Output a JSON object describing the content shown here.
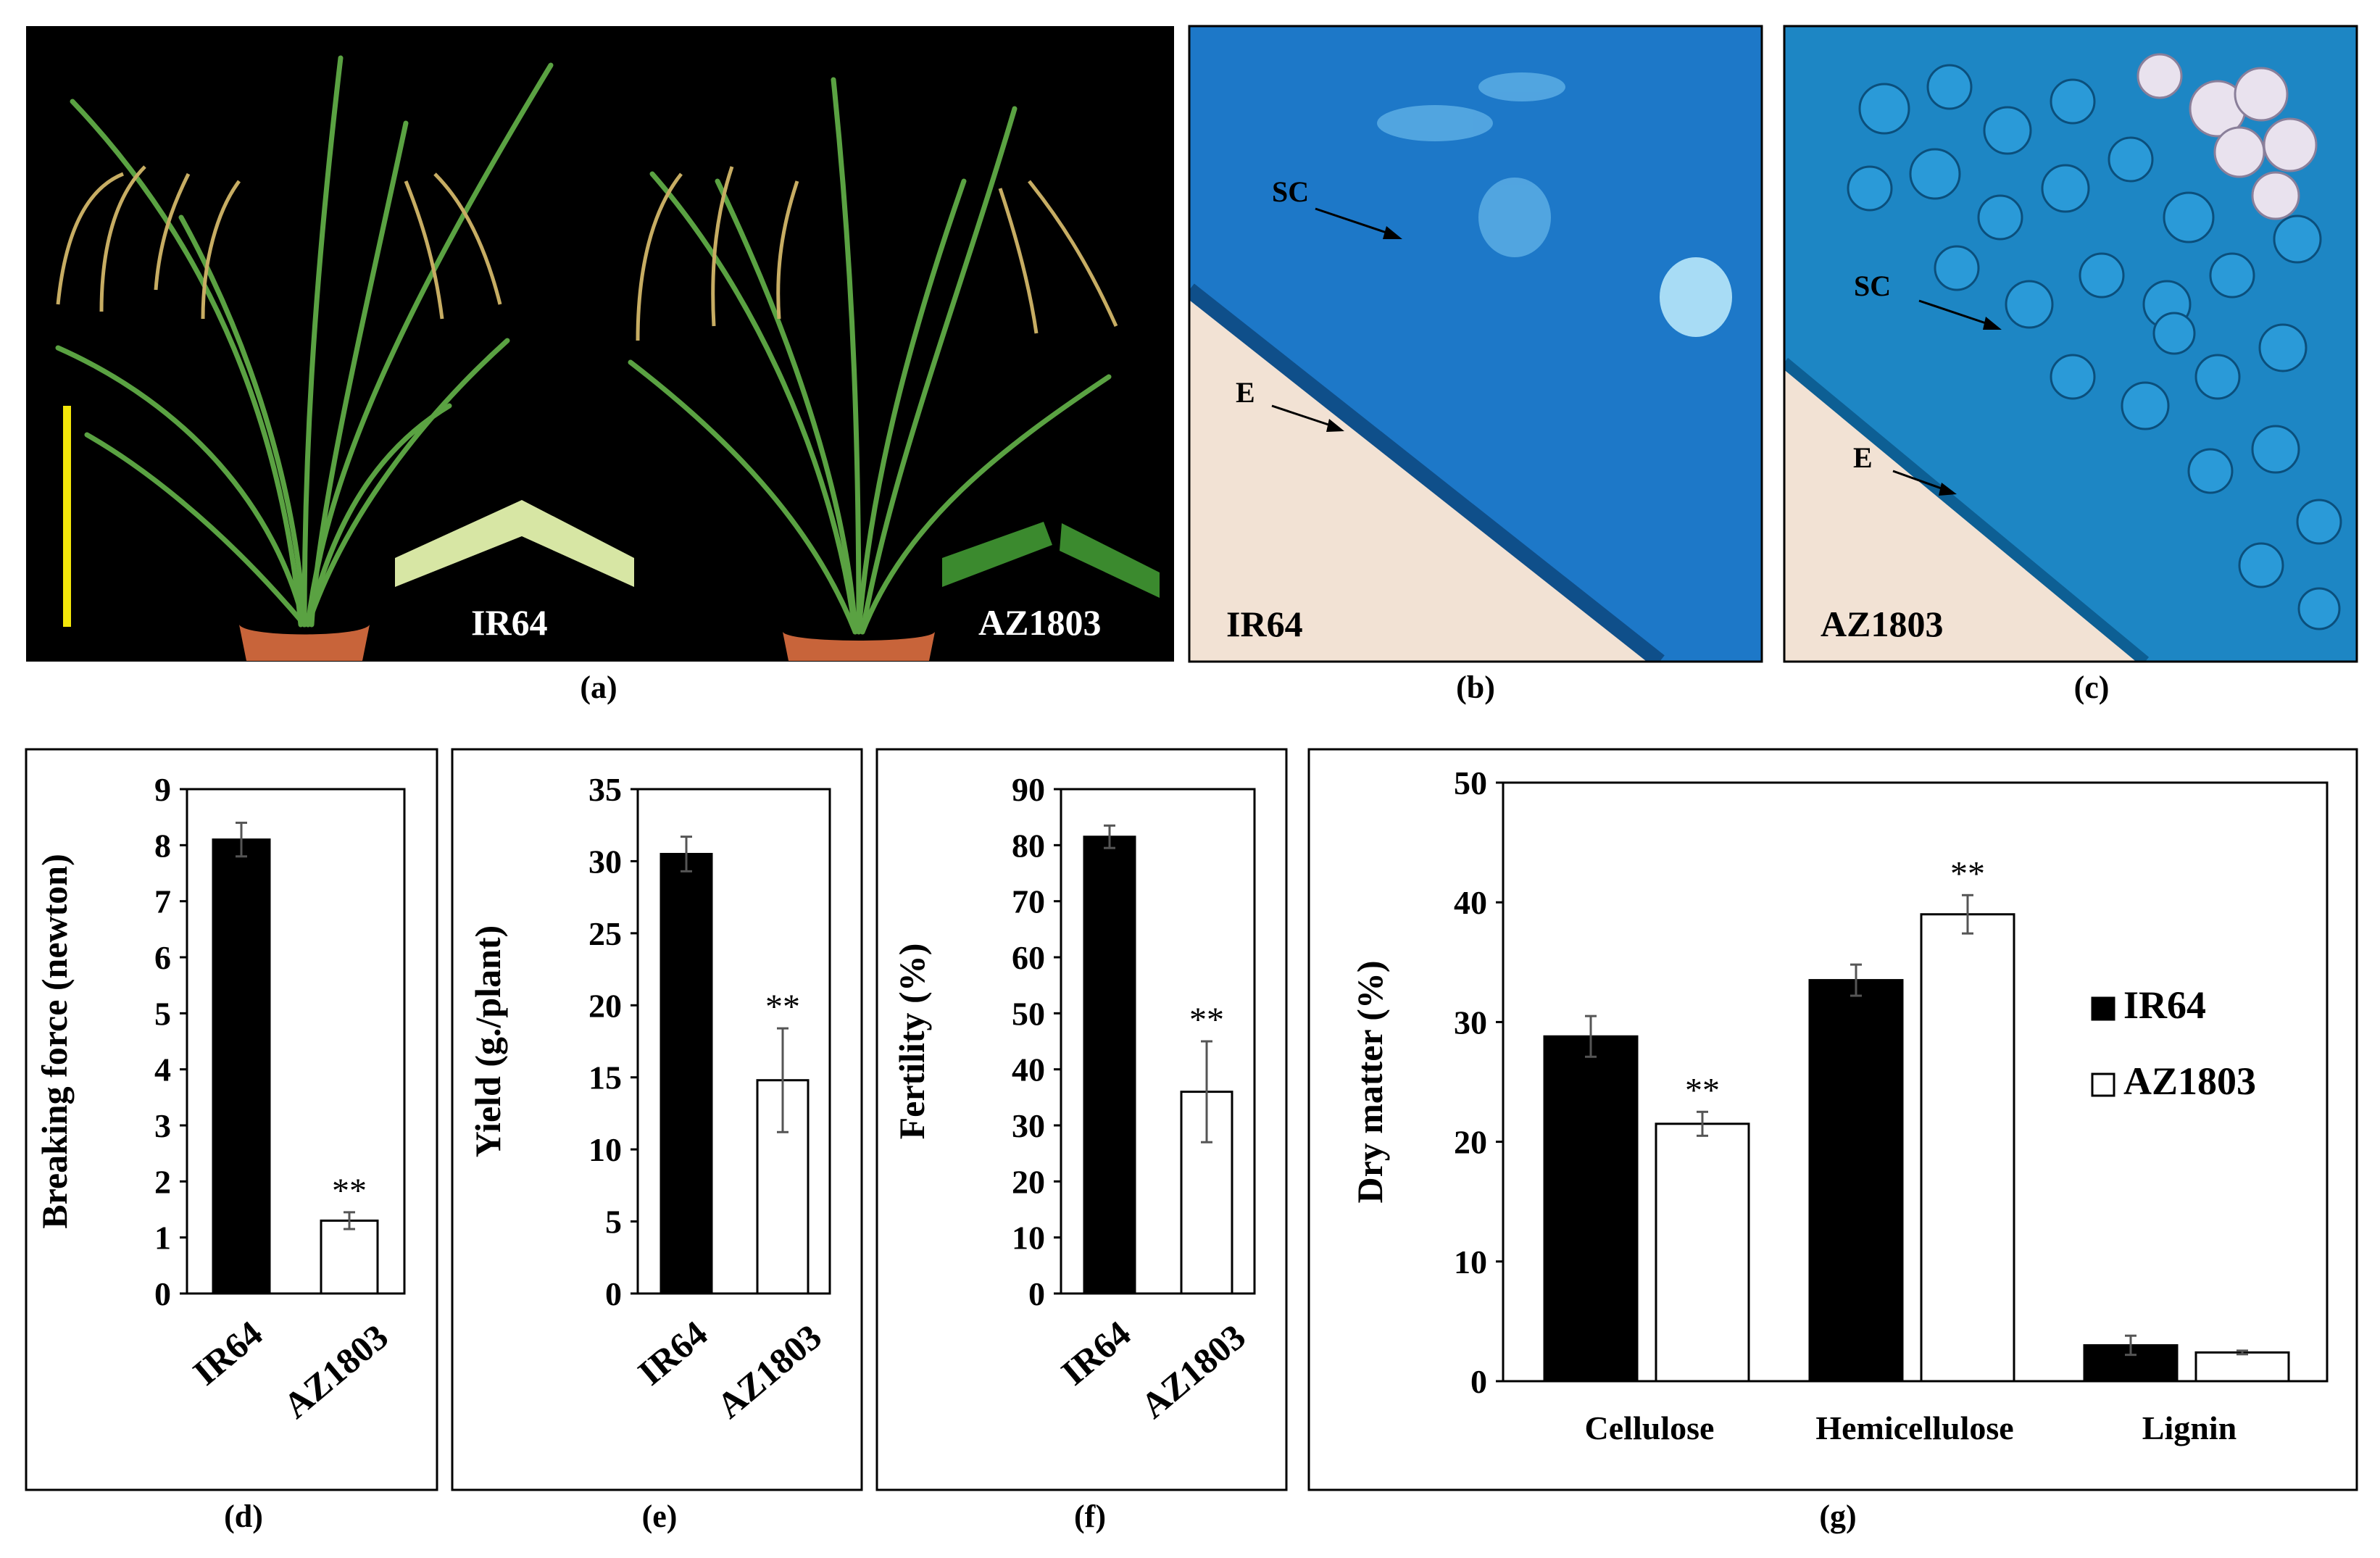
{
  "panels": {
    "a": {
      "caption": "(a)",
      "left_label": "IR64",
      "right_label": "AZ1803",
      "colors": {
        "background": "#000000",
        "scale_bar": "#f2e60a",
        "leaf": "#4f9a3c",
        "pot": "#c8643a"
      }
    },
    "b": {
      "caption": "(b)",
      "label": "IR64",
      "annotations": [
        "SC",
        "E"
      ],
      "colors": {
        "tissue": "#1d78c8",
        "background": "#f2e2d4"
      }
    },
    "c": {
      "caption": "(c)",
      "label": "AZ1803",
      "annotations": [
        "SC",
        "E"
      ],
      "colors": {
        "tissue": "#1d86c4",
        "background": "#f2e2d4"
      }
    },
    "d": {
      "caption": "(d)"
    },
    "e": {
      "caption": "(e)"
    },
    "f": {
      "caption": "(f)"
    },
    "g": {
      "caption": "(g)"
    }
  },
  "colors": {
    "ir64_bar": "#000000",
    "az1803_bar": "#ffffff"
  },
  "chart_data": [
    {
      "id": "d",
      "type": "bar",
      "ylabel": "Breaking force (newton)",
      "categories": [
        "IR64",
        "AZ1803"
      ],
      "values": [
        8.1,
        1.3
      ],
      "errors": [
        0.3,
        0.15
      ],
      "significance": [
        "",
        "**"
      ],
      "ylim": [
        0,
        9
      ],
      "yticks": [
        "0",
        "1",
        "2",
        "3",
        "4",
        "5",
        "6",
        "7",
        "8",
        "9"
      ]
    },
    {
      "id": "e",
      "type": "bar",
      "ylabel": "Yield (g./plant)",
      "categories": [
        "IR64",
        "AZ1803"
      ],
      "values": [
        30.5,
        14.8
      ],
      "errors": [
        1.2,
        3.6
      ],
      "significance": [
        "",
        "**"
      ],
      "ylim": [
        0,
        35
      ],
      "yticks": [
        "0",
        "5",
        "10",
        "15",
        "20",
        "25",
        "30",
        "35"
      ]
    },
    {
      "id": "f",
      "type": "bar",
      "ylabel": "Fertility (%)",
      "categories": [
        "IR64",
        "AZ1803"
      ],
      "values": [
        81.5,
        36
      ],
      "errors": [
        2,
        9
      ],
      "significance": [
        "",
        "**"
      ],
      "ylim": [
        0,
        90
      ],
      "yticks": [
        "0",
        "10",
        "20",
        "30",
        "40",
        "50",
        "60",
        "70",
        "80",
        "90"
      ]
    },
    {
      "id": "g",
      "type": "bar",
      "ylabel": "Dry matter (%)",
      "categories": [
        "Cellulose",
        "Hemicellulose",
        "Lignin"
      ],
      "series": [
        {
          "name": "IR64",
          "values": [
            28.8,
            33.5,
            3.0
          ],
          "errors": [
            1.7,
            1.3,
            0.8
          ],
          "significance": [
            "",
            "",
            ""
          ]
        },
        {
          "name": "AZ1803",
          "values": [
            21.5,
            39.0,
            2.4
          ],
          "errors": [
            1.0,
            1.6,
            0.15
          ],
          "significance": [
            "**",
            "**",
            ""
          ]
        }
      ],
      "ylim": [
        0,
        50
      ],
      "yticks": [
        "0",
        "10",
        "20",
        "30",
        "40",
        "50"
      ],
      "legend": "right"
    }
  ]
}
